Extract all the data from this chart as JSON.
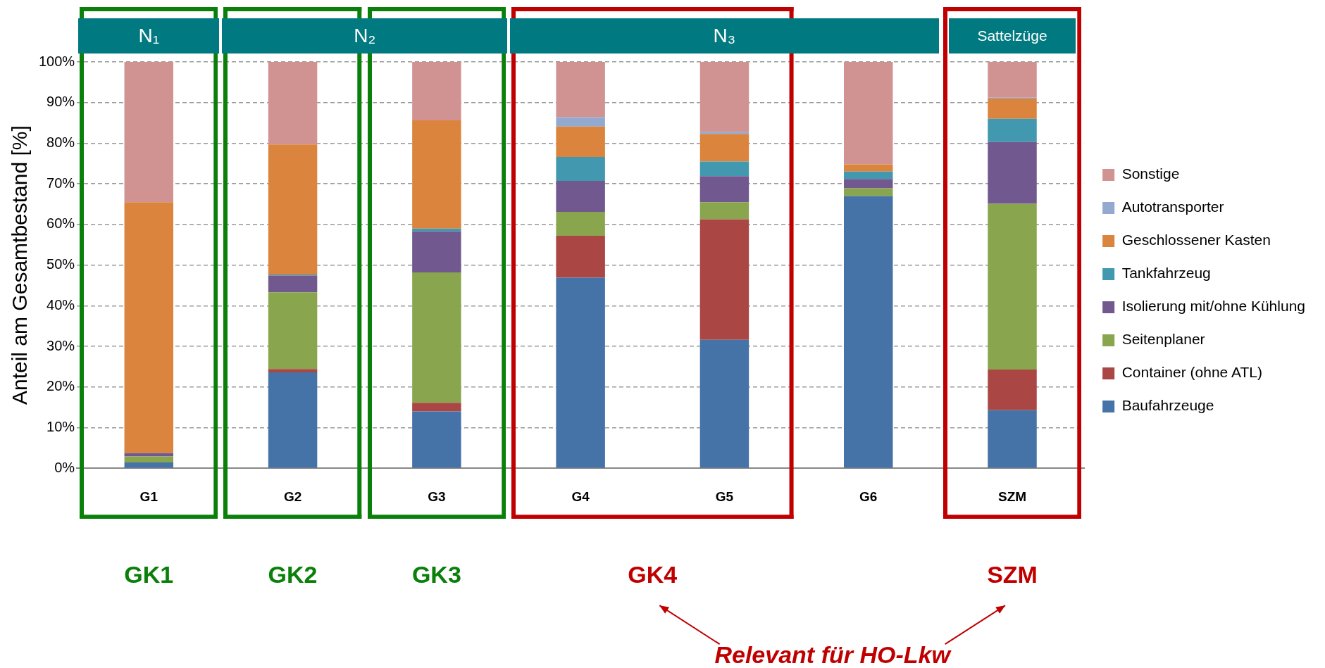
{
  "chart_data": {
    "type": "bar",
    "stacked": true,
    "ylabel": "Anteil am Gesamtbestand [%]",
    "categories": [
      "G1",
      "G2",
      "G3",
      "G4",
      "G5",
      "G6",
      "SZM"
    ],
    "series": [
      {
        "name": "Baufahrzeuge",
        "color": "#4572a7",
        "values": [
          1.4,
          23.6,
          14.0,
          46.9,
          31.6,
          67.0,
          14.3
        ]
      },
      {
        "name": "Container (ohne ATL)",
        "color": "#aa4643",
        "values": [
          0,
          0.8,
          2.1,
          10.3,
          29.7,
          0,
          10.0
        ]
      },
      {
        "name": "Seitenplaner",
        "color": "#89a54e",
        "values": [
          1.5,
          18.9,
          32.1,
          5.9,
          4.2,
          1.9,
          40.8
        ]
      },
      {
        "name": "Isolierung mit/ohne Kühlung",
        "color": "#71588f",
        "values": [
          0.8,
          4.1,
          10.1,
          7.6,
          6.4,
          2.3,
          15.2
        ]
      },
      {
        "name": "Tankfahrzeug",
        "color": "#4198af",
        "values": [
          0,
          0.3,
          0.7,
          5.9,
          3.6,
          1.8,
          5.7
        ]
      },
      {
        "name": "Geschlossener Kasten",
        "color": "#db843d",
        "values": [
          61.8,
          32.0,
          26.6,
          7.5,
          6.8,
          1.8,
          5.0
        ]
      },
      {
        "name": "Autotransporter",
        "color": "#93a9cf",
        "values": [
          0,
          0,
          0,
          2.3,
          0.5,
          0,
          0.2
        ]
      },
      {
        "name": "Sonstige",
        "color": "#d19392",
        "values": [
          34.5,
          20.3,
          14.4,
          13.6,
          17.2,
          25.2,
          8.8
        ]
      }
    ],
    "ylim": [
      0,
      100
    ],
    "yticks": [
      {
        "value": 0,
        "label": "0%"
      },
      {
        "value": 10,
        "label": "10%"
      },
      {
        "value": 20,
        "label": "20%"
      },
      {
        "value": 30,
        "label": "30%"
      },
      {
        "value": 40,
        "label": "40%"
      },
      {
        "value": 50,
        "label": "50%"
      },
      {
        "value": 60,
        "label": "60%"
      },
      {
        "value": 70,
        "label": "70%"
      },
      {
        "value": 80,
        "label": "80%"
      },
      {
        "value": 90,
        "label": "90%"
      },
      {
        "value": 100,
        "label": "100%"
      }
    ],
    "grid": "y",
    "line_style": "dashed",
    "legend": "right",
    "annotations": [
      "N₁",
      "N₂",
      "N₃",
      "Sattelzüge",
      "GK1",
      "GK2",
      "GK3",
      "GK4",
      "SZM",
      "Relevant für HO-Lkw"
    ]
  }
}
